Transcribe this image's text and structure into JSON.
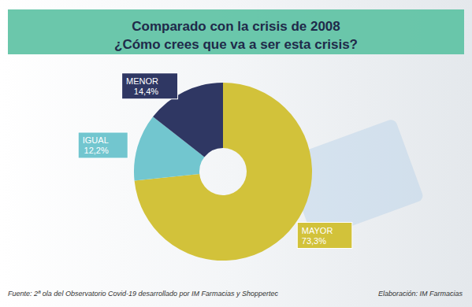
{
  "chart_data": {
    "type": "pie",
    "title": "Comparado con la crisis de 2008\n¿Cómo crees que va a ser esta crisis?",
    "categories": [
      "MAYOR",
      "IGUAL",
      "MENOR"
    ],
    "values": [
      73.3,
      12.2,
      14.4
    ],
    "value_labels": [
      "73,3%",
      "12,2%",
      "14,4%"
    ],
    "colors": [
      "#d2c23a",
      "#72c6cf",
      "#2f3763"
    ],
    "data_labels": true,
    "annotations": [
      "Fuente: 2ª ola del Observatorio Covid-19 desarrollado por IM Farmacias y Shoppertec",
      "Elaboración: IM Farmacias"
    ]
  }
}
